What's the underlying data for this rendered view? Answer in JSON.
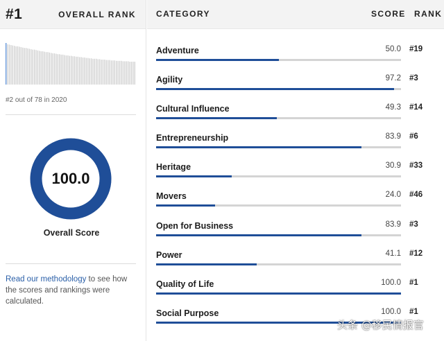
{
  "left": {
    "rank": "#1",
    "rank_label": "OVERALL RANK",
    "rank_note": "#2 out of 78 in 2020",
    "trend_values": [
      100,
      97,
      96,
      95,
      94,
      93,
      92,
      92,
      91,
      90,
      89,
      88,
      88,
      87,
      86,
      85,
      84,
      84,
      83,
      82,
      81,
      80,
      80,
      79,
      78,
      78,
      77,
      76,
      75,
      75,
      74,
      73,
      73,
      72,
      72,
      71,
      70,
      70,
      69,
      69,
      68,
      68,
      67,
      67,
      66,
      66,
      65,
      65,
      64,
      64,
      63,
      63,
      62,
      62,
      62,
      61,
      61,
      60,
      60,
      60,
      59,
      59,
      59,
      58,
      58,
      58,
      57,
      57,
      57,
      57,
      56,
      56,
      56,
      56,
      55,
      55,
      55,
      55
    ],
    "highlight_index": 0,
    "score_value": "100.0",
    "score_fraction": 1.0,
    "score_label": "Overall Score",
    "methodology_link": "Read our methodology",
    "methodology_text": " to see how the scores and rankings were calculated."
  },
  "right": {
    "headers": {
      "category": "CATEGORY",
      "score": "SCORE",
      "rank": "RANK"
    },
    "rows": [
      {
        "name": "Adventure",
        "score": "50.0",
        "rank": "#19",
        "value": 50.0
      },
      {
        "name": "Agility",
        "score": "97.2",
        "rank": "#3",
        "value": 97.2
      },
      {
        "name": "Cultural Influence",
        "score": "49.3",
        "rank": "#14",
        "value": 49.3
      },
      {
        "name": "Entrepreneurship",
        "score": "83.9",
        "rank": "#6",
        "value": 83.9
      },
      {
        "name": "Heritage",
        "score": "30.9",
        "rank": "#33",
        "value": 30.9
      },
      {
        "name": "Movers",
        "score": "24.0",
        "rank": "#46",
        "value": 24.0
      },
      {
        "name": "Open for Business",
        "score": "83.9",
        "rank": "#3",
        "value": 83.9
      },
      {
        "name": "Power",
        "score": "41.1",
        "rank": "#12",
        "value": 41.1
      },
      {
        "name": "Quality of Life",
        "score": "100.0",
        "rank": "#1",
        "value": 100.0
      },
      {
        "name": "Social Purpose",
        "score": "100.0",
        "rank": "#1",
        "value": 100.0
      }
    ]
  },
  "colors": {
    "accent": "#1f4e98",
    "track": "#d4d4d4",
    "highlight": "#5b8fd6",
    "trend_bar": "#cfcfcf"
  },
  "watermark": "头条 @移民情报官"
}
